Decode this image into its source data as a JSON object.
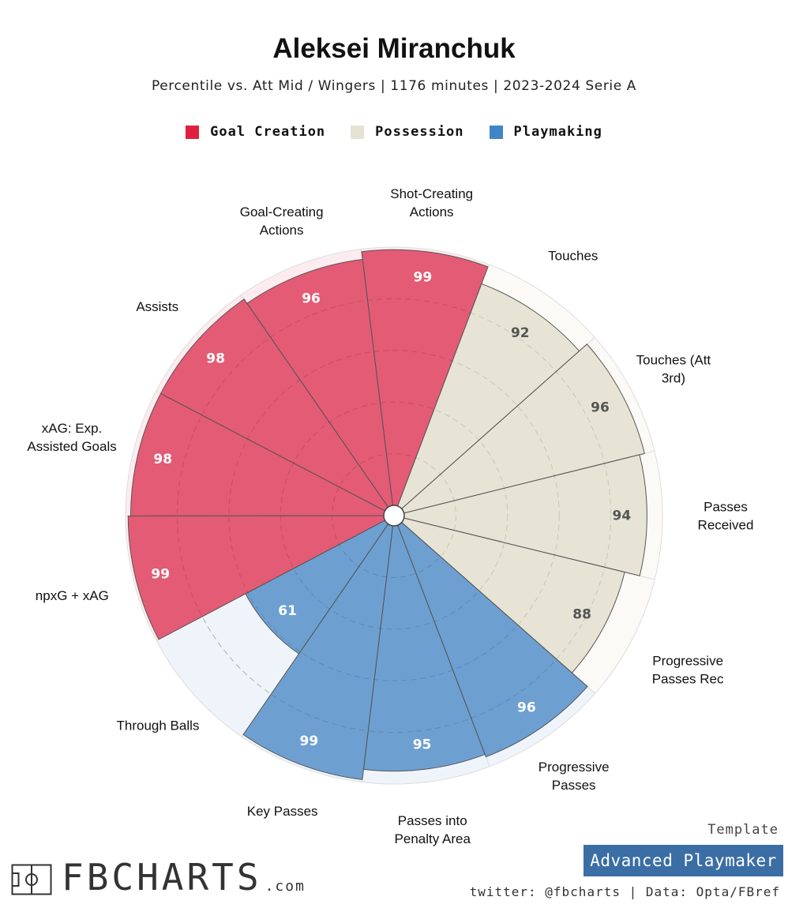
{
  "header": {
    "title": "Aleksei Miranchuk",
    "subtitle": "Percentile vs. Att Mid / Wingers | 1176 minutes | 2023-2024 Serie A"
  },
  "legend": [
    {
      "label": "Goal Creation",
      "color": "#e0203f"
    },
    {
      "label": "Possession",
      "color": "#e6e2d3"
    },
    {
      "label": "Playmaking",
      "color": "#3f85c9"
    }
  ],
  "chart_data": {
    "type": "polar-bar",
    "max_value": 100,
    "categories": [
      {
        "label": "Shot-Creating Actions",
        "value": 99,
        "group": "Goal Creation"
      },
      {
        "label": "Touches",
        "value": 92,
        "group": "Possession"
      },
      {
        "label": "Touches (Att 3rd)",
        "value": 96,
        "group": "Possession"
      },
      {
        "label": "Passes Received",
        "value": 94,
        "group": "Possession"
      },
      {
        "label": "Progressive Passes Rec",
        "value": 88,
        "group": "Possession"
      },
      {
        "label": "Progressive Passes",
        "value": 96,
        "group": "Playmaking"
      },
      {
        "label": "Passes into Penalty Area",
        "value": 95,
        "group": "Playmaking"
      },
      {
        "label": "Key Passes",
        "value": 99,
        "group": "Playmaking"
      },
      {
        "label": "Through Balls",
        "value": 61,
        "group": "Playmaking"
      },
      {
        "label": "npxG + xAG",
        "value": 99,
        "group": "Goal Creation"
      },
      {
        "label": "xAG: Exp. Assisted Goals",
        "value": 98,
        "group": "Goal Creation"
      },
      {
        "label": "Assists",
        "value": 98,
        "group": "Goal Creation"
      },
      {
        "label": "Goal-Creating Actions",
        "value": 96,
        "group": "Goal Creation"
      }
    ],
    "group_colors": {
      "Goal Creation": {
        "fill": "#e2506c",
        "bg": "#fdecef",
        "text": "#ffffff"
      },
      "Possession": {
        "fill": "#e6e2d2",
        "bg": "#fbfaf6",
        "text": "#555555"
      },
      "Playmaking": {
        "fill": "#6399cd",
        "bg": "#eef4fa",
        "text": "#ffffff"
      }
    }
  },
  "footer": {
    "template_label": "Template",
    "template_name": "Advanced Playmaker",
    "credits": "twitter: @fbcharts | Data: Opta/FBref",
    "brand": "FBCHARTS",
    "brand_suffix": ".com"
  }
}
